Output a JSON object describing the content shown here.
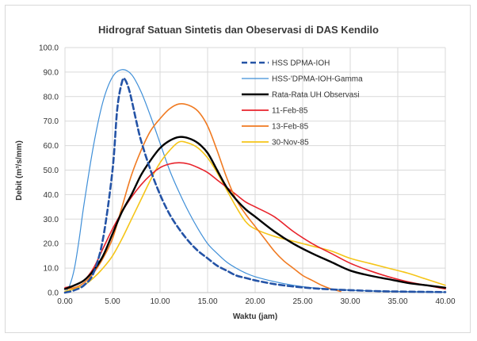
{
  "chart_data": {
    "type": "line",
    "title": "Hidrograf Satuan Sintetis dan Obeservasi di DAS Kendilo",
    "xlabel": "Waktu (jam)",
    "ylabel": "Debit (m³/s/mm)",
    "xlim": [
      0,
      40
    ],
    "ylim": [
      0,
      100
    ],
    "x_ticks": [
      "0.00",
      "5.00",
      "10.00",
      "15.00",
      "20.00",
      "25.00",
      "30.00",
      "35.00",
      "40.00"
    ],
    "y_ticks": [
      "0.0",
      "10.0",
      "20.0",
      "30.0",
      "40.0",
      "50.0",
      "60.0",
      "70.0",
      "80.0",
      "90.0",
      "100.0"
    ],
    "grid": true,
    "legend_position": "top-right",
    "series": [
      {
        "name": "HSS DPMA-IOH",
        "color": "#2453a6",
        "dash": "dashed",
        "points": [
          [
            0,
            0
          ],
          [
            1,
            1
          ],
          [
            2,
            3
          ],
          [
            3,
            8
          ],
          [
            4,
            22
          ],
          [
            5,
            50
          ],
          [
            5.5,
            75
          ],
          [
            6,
            86
          ],
          [
            6.3,
            87
          ],
          [
            6.8,
            82
          ],
          [
            7.5,
            70
          ],
          [
            8,
            62
          ],
          [
            9,
            50
          ],
          [
            10,
            40
          ],
          [
            11,
            32
          ],
          [
            12,
            26
          ],
          [
            13,
            21
          ],
          [
            14,
            17
          ],
          [
            15,
            14
          ],
          [
            16,
            11
          ],
          [
            17,
            9
          ],
          [
            18,
            7
          ],
          [
            19,
            6
          ],
          [
            20,
            5
          ],
          [
            22,
            3.5
          ],
          [
            24,
            2.5
          ],
          [
            26,
            1.8
          ],
          [
            28,
            1.3
          ],
          [
            30,
            1
          ],
          [
            33,
            0.6
          ],
          [
            36,
            0.4
          ],
          [
            40,
            0.2
          ]
        ]
      },
      {
        "name": "HSS-'DPMA-IOH-Gamma",
        "color": "#3f8fd8",
        "dash": "solid",
        "points": [
          [
            0,
            0
          ],
          [
            0.5,
            3
          ],
          [
            1,
            10
          ],
          [
            1.5,
            22
          ],
          [
            2,
            36
          ],
          [
            3,
            60
          ],
          [
            4,
            78
          ],
          [
            5,
            88
          ],
          [
            6,
            91
          ],
          [
            7,
            89
          ],
          [
            8,
            82
          ],
          [
            9,
            72
          ],
          [
            10,
            61
          ],
          [
            11,
            50
          ],
          [
            12,
            41
          ],
          [
            13,
            33
          ],
          [
            14,
            26
          ],
          [
            15,
            20
          ],
          [
            16,
            16
          ],
          [
            17,
            12.5
          ],
          [
            18,
            10
          ],
          [
            19,
            8
          ],
          [
            20,
            6.5
          ],
          [
            22,
            4.5
          ],
          [
            24,
            3
          ],
          [
            26,
            2
          ],
          [
            28,
            1.5
          ],
          [
            30,
            1
          ],
          [
            33,
            0.6
          ],
          [
            36,
            0.4
          ],
          [
            40,
            0.2
          ]
        ]
      },
      {
        "name": "Rata-Rata UH Observasi",
        "color": "#000000",
        "dash": "solid",
        "points": [
          [
            0,
            1.5
          ],
          [
            1,
            3
          ],
          [
            2,
            5
          ],
          [
            3,
            9
          ],
          [
            4,
            15
          ],
          [
            5,
            24
          ],
          [
            6,
            33
          ],
          [
            7,
            40
          ],
          [
            8,
            48
          ],
          [
            9,
            54
          ],
          [
            10,
            59
          ],
          [
            11,
            62
          ],
          [
            12,
            63.5
          ],
          [
            13,
            63
          ],
          [
            14,
            61
          ],
          [
            15,
            57
          ],
          [
            16,
            50
          ],
          [
            17,
            43
          ],
          [
            18,
            38
          ],
          [
            19,
            34
          ],
          [
            20,
            31
          ],
          [
            22,
            25
          ],
          [
            24,
            20
          ],
          [
            26,
            16
          ],
          [
            28,
            12.5
          ],
          [
            30,
            9
          ],
          [
            32,
            7
          ],
          [
            34,
            5.5
          ],
          [
            36,
            4
          ],
          [
            38,
            3
          ],
          [
            40,
            2
          ]
        ]
      },
      {
        "name": "11-Feb-85",
        "color": "#e8232b",
        "dash": "solid",
        "points": [
          [
            0,
            2
          ],
          [
            1,
            3
          ],
          [
            2,
            5
          ],
          [
            3,
            10
          ],
          [
            4,
            18
          ],
          [
            5,
            26
          ],
          [
            6,
            33
          ],
          [
            7,
            39
          ],
          [
            8,
            44
          ],
          [
            9,
            48
          ],
          [
            10,
            51
          ],
          [
            11,
            52.5
          ],
          [
            12,
            53
          ],
          [
            13,
            52.5
          ],
          [
            14,
            51
          ],
          [
            15,
            49
          ],
          [
            16,
            46
          ],
          [
            17,
            43
          ],
          [
            18,
            40
          ],
          [
            19,
            37
          ],
          [
            20,
            35
          ],
          [
            22,
            31
          ],
          [
            24,
            25
          ],
          [
            26,
            20
          ],
          [
            28,
            16
          ],
          [
            30,
            12
          ],
          [
            32,
            9
          ],
          [
            34,
            6.5
          ],
          [
            36,
            4.5
          ],
          [
            38,
            3
          ],
          [
            40,
            1.5
          ]
        ]
      },
      {
        "name": "13-Feb-85",
        "color": "#f07a21",
        "dash": "solid",
        "points": [
          [
            0,
            1.5
          ],
          [
            1,
            2
          ],
          [
            2,
            4
          ],
          [
            3,
            8
          ],
          [
            4,
            14
          ],
          [
            5,
            22
          ],
          [
            6,
            35
          ],
          [
            7,
            48
          ],
          [
            8,
            58
          ],
          [
            9,
            66
          ],
          [
            10,
            71
          ],
          [
            11,
            75
          ],
          [
            12,
            77
          ],
          [
            13,
            76.5
          ],
          [
            14,
            74
          ],
          [
            15,
            68
          ],
          [
            16,
            58
          ],
          [
            17,
            47
          ],
          [
            18,
            38
          ],
          [
            19,
            32
          ],
          [
            20,
            27
          ],
          [
            21,
            22
          ],
          [
            22,
            17
          ],
          [
            23,
            13
          ],
          [
            24,
            10
          ],
          [
            25,
            7
          ],
          [
            26,
            5
          ],
          [
            27,
            3
          ],
          [
            28,
            1.5
          ],
          [
            29,
            0.5
          ]
        ]
      },
      {
        "name": "30-Nov-85",
        "color": "#f5c518",
        "dash": "solid",
        "points": [
          [
            0,
            0.5
          ],
          [
            1,
            1.5
          ],
          [
            2,
            3
          ],
          [
            3,
            6
          ],
          [
            4,
            10
          ],
          [
            5,
            15
          ],
          [
            6,
            22
          ],
          [
            7,
            30
          ],
          [
            8,
            38
          ],
          [
            9,
            46
          ],
          [
            10,
            53
          ],
          [
            11,
            58
          ],
          [
            12,
            61.5
          ],
          [
            13,
            61
          ],
          [
            14,
            59
          ],
          [
            15,
            55
          ],
          [
            16,
            49
          ],
          [
            17,
            42
          ],
          [
            18,
            35
          ],
          [
            19,
            29
          ],
          [
            20,
            26
          ],
          [
            22,
            23
          ],
          [
            24,
            21
          ],
          [
            26,
            19
          ],
          [
            28,
            17
          ],
          [
            30,
            14
          ],
          [
            32,
            12
          ],
          [
            34,
            10
          ],
          [
            36,
            8
          ],
          [
            38,
            5.5
          ],
          [
            40,
            3
          ]
        ]
      }
    ]
  }
}
